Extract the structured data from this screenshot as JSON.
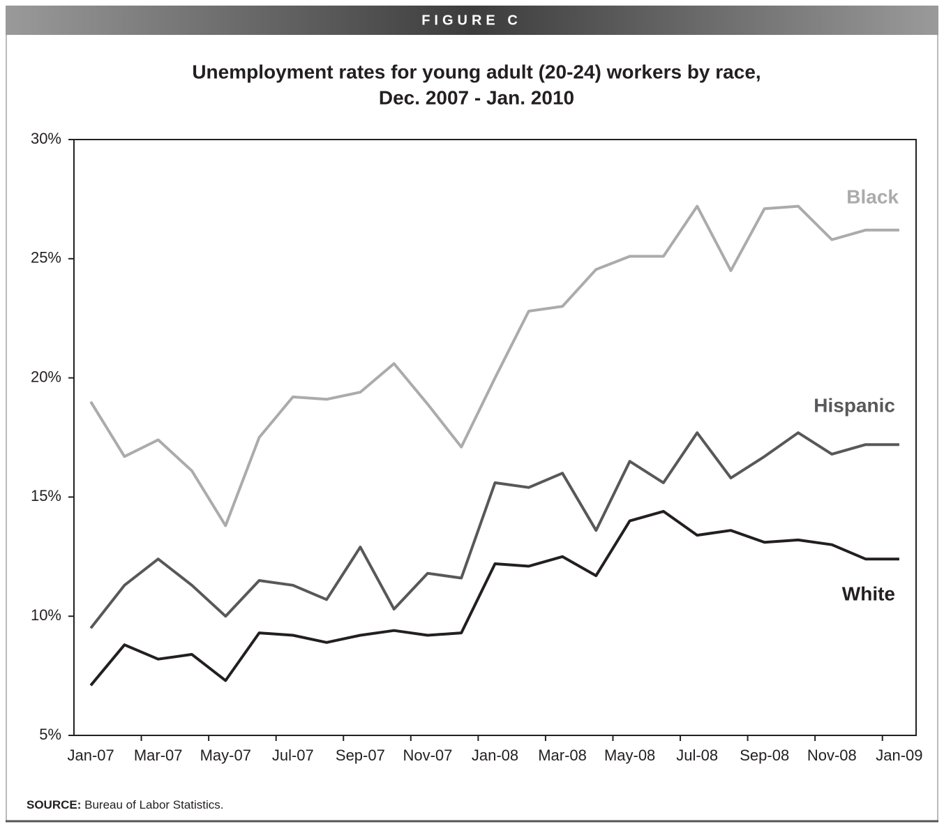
{
  "figure_label": "FIGURE C",
  "chart_data": {
    "type": "line",
    "title": [
      "Unemployment rates for young adult (20-24) workers by race,",
      "Dec. 2007 - Jan. 2010"
    ],
    "categories": [
      "Jan-07",
      null,
      "Mar-07",
      null,
      "May-07",
      null,
      "Jul-07",
      null,
      "Sep-07",
      null,
      "Nov-07",
      null,
      "Jan-08",
      null,
      "Mar-08",
      null,
      "May-08",
      null,
      "Jul-08",
      null,
      "Sep-08",
      null,
      "Nov-08",
      null,
      "Jan-09"
    ],
    "ylim": [
      5,
      30
    ],
    "yticks": [
      {
        "value": 5,
        "label": "5%"
      },
      {
        "value": 10,
        "label": "10%"
      },
      {
        "value": 15,
        "label": "15%"
      },
      {
        "value": 20,
        "label": "20%"
      },
      {
        "value": 25,
        "label": "25%"
      },
      {
        "value": 30,
        "label": "30%"
      }
    ],
    "grid": false,
    "series": [
      {
        "name": "Black",
        "color": "#ababab",
        "values": [
          19.0,
          16.7,
          17.4,
          16.1,
          13.8,
          17.5,
          19.2,
          19.1,
          19.4,
          20.6,
          18.9,
          17.1,
          20.0,
          22.8,
          23.0,
          24.55,
          25.1,
          25.1,
          27.2,
          24.5,
          27.1,
          27.2,
          25.8,
          26.2,
          26.2
        ]
      },
      {
        "name": "Hispanic",
        "color": "#58585a",
        "values": [
          9.5,
          11.3,
          12.4,
          11.3,
          10.0,
          11.5,
          11.3,
          10.7,
          12.9,
          10.3,
          11.8,
          11.6,
          15.6,
          15.4,
          16.0,
          13.6,
          16.5,
          15.6,
          17.7,
          15.8,
          16.7,
          17.7,
          16.8,
          17.2,
          17.2
        ]
      },
      {
        "name": "White",
        "color": "#231f20",
        "values": [
          7.1,
          8.8,
          8.2,
          8.4,
          7.3,
          9.3,
          9.2,
          8.9,
          9.2,
          9.4,
          9.2,
          9.3,
          12.2,
          12.1,
          12.5,
          11.7,
          14.0,
          14.4,
          13.4,
          13.6,
          13.1,
          13.2,
          13.0,
          12.4,
          12.4
        ]
      }
    ],
    "source_label": "SOURCE:",
    "source_text": "Bureau of Labor Statistics."
  }
}
